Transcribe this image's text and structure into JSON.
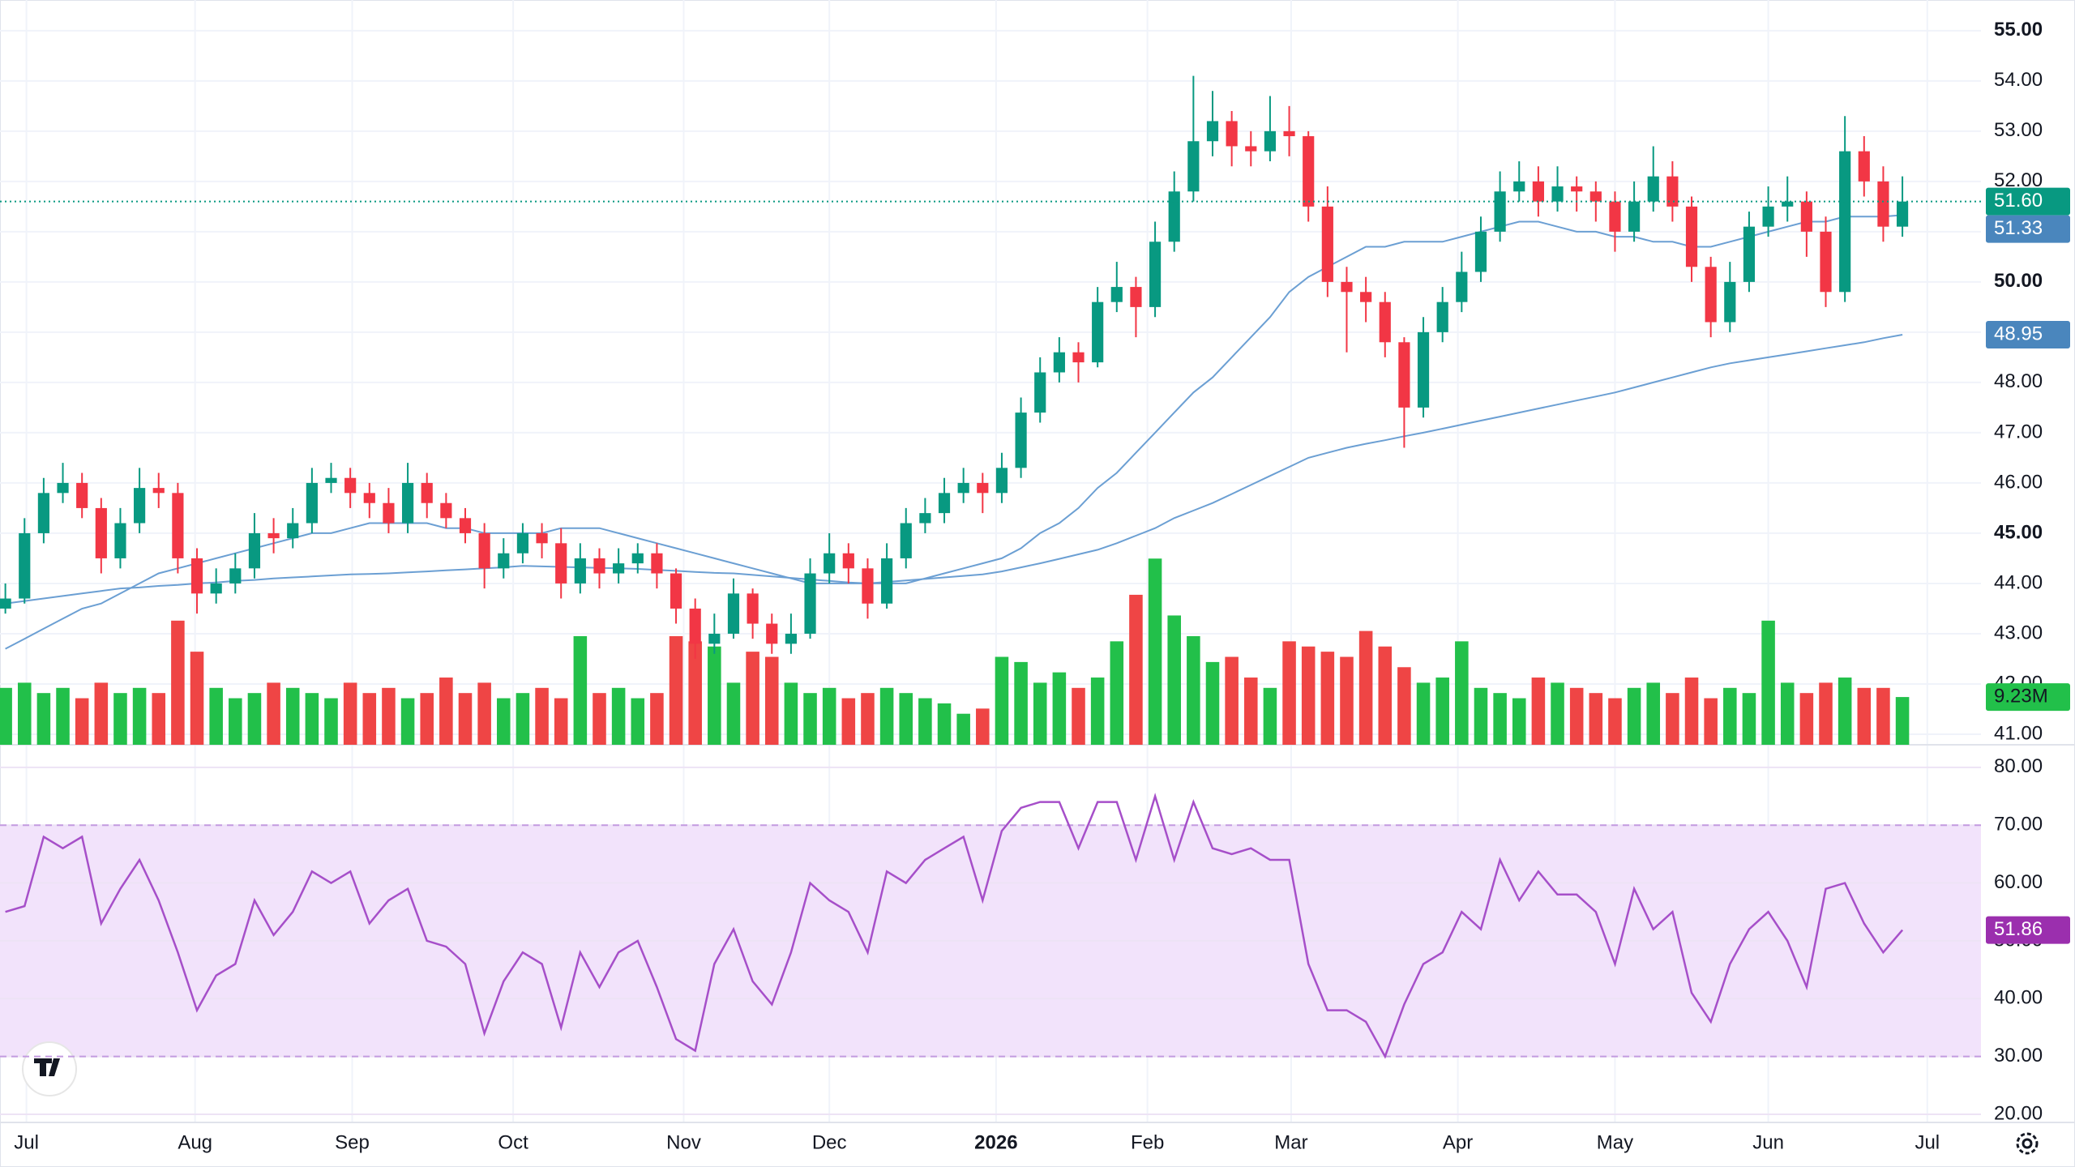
{
  "chart_data": [
    {
      "type": "candlestick",
      "up_color": "#089981",
      "down_color": "#f23645",
      "open": [
        43.5,
        43.7,
        45.0,
        45.8,
        46.0,
        45.5,
        44.5,
        45.2,
        45.9,
        45.8,
        44.5,
        43.8,
        44.0,
        44.3,
        45.0,
        44.9,
        45.2,
        46.0,
        46.1,
        45.8,
        45.6,
        45.2,
        46.0,
        45.6,
        45.3,
        45.0,
        44.3,
        44.6,
        45.0,
        44.8,
        44.0,
        44.5,
        44.2,
        44.4,
        44.6,
        44.2,
        43.5,
        42.8,
        43.0,
        43.8,
        43.2,
        42.8,
        43.0,
        44.2,
        44.6,
        44.3,
        43.6,
        44.5,
        45.2,
        45.4,
        45.8,
        46.0,
        45.8,
        46.3,
        47.4,
        48.2,
        48.6,
        48.4,
        49.6,
        49.9,
        49.5,
        50.8,
        51.8,
        52.8,
        53.2,
        52.7,
        52.6,
        53.0,
        52.9,
        51.5,
        50.0,
        49.8,
        49.6,
        48.8,
        47.5,
        49.0,
        49.6,
        50.2,
        51.0,
        51.8,
        52.0,
        51.6,
        51.9,
        51.8,
        51.6,
        51.0,
        51.6,
        52.1,
        51.5,
        50.3,
        49.2,
        50.0,
        51.1,
        51.5,
        51.6,
        51.0,
        49.8,
        52.6,
        52.0,
        51.1
      ],
      "high": [
        44.0,
        45.3,
        46.1,
        46.4,
        46.2,
        45.7,
        45.5,
        46.3,
        46.2,
        46.0,
        44.7,
        44.3,
        44.6,
        45.4,
        45.3,
        45.5,
        46.3,
        46.4,
        46.3,
        46.0,
        45.9,
        46.4,
        46.2,
        45.8,
        45.5,
        45.2,
        44.9,
        45.2,
        45.2,
        45.1,
        44.8,
        44.7,
        44.7,
        44.8,
        44.8,
        44.3,
        43.7,
        43.4,
        44.1,
        43.9,
        43.4,
        43.4,
        44.5,
        45.0,
        44.8,
        44.5,
        44.8,
        45.5,
        45.7,
        46.1,
        46.3,
        46.2,
        46.6,
        47.7,
        48.5,
        48.9,
        48.8,
        49.9,
        50.4,
        50.1,
        51.2,
        52.2,
        54.1,
        53.8,
        53.4,
        53.0,
        53.7,
        53.5,
        53.0,
        51.9,
        50.3,
        50.1,
        49.8,
        48.9,
        49.3,
        49.9,
        50.6,
        51.3,
        52.2,
        52.4,
        52.3,
        52.3,
        52.1,
        52.0,
        51.8,
        52.0,
        52.7,
        52.4,
        51.7,
        50.5,
        50.4,
        51.4,
        51.9,
        52.1,
        51.8,
        51.3,
        53.3,
        52.9,
        52.3,
        52.1
      ],
      "low": [
        43.4,
        43.6,
        44.8,
        45.6,
        45.3,
        44.2,
        44.3,
        45.0,
        45.5,
        44.2,
        43.4,
        43.6,
        43.8,
        44.1,
        44.6,
        44.7,
        45.0,
        45.8,
        45.5,
        45.3,
        45.0,
        45.0,
        45.3,
        45.1,
        44.8,
        43.9,
        44.1,
        44.4,
        44.5,
        43.7,
        43.8,
        43.9,
        44.0,
        44.2,
        43.9,
        43.2,
        42.5,
        42.6,
        42.9,
        42.9,
        42.6,
        42.6,
        42.9,
        44.0,
        44.0,
        43.3,
        43.5,
        44.3,
        45.0,
        45.2,
        45.6,
        45.4,
        45.6,
        46.1,
        47.2,
        48.0,
        48.0,
        48.3,
        49.4,
        48.9,
        49.3,
        50.6,
        51.6,
        52.5,
        52.3,
        52.3,
        52.4,
        52.5,
        51.2,
        49.7,
        48.6,
        49.2,
        48.5,
        46.7,
        47.3,
        48.8,
        49.4,
        50.0,
        50.8,
        51.6,
        51.3,
        51.4,
        51.4,
        51.2,
        50.6,
        50.8,
        51.4,
        51.2,
        50.0,
        48.9,
        49.0,
        49.8,
        50.9,
        51.2,
        50.5,
        49.5,
        49.6,
        51.7,
        50.8,
        50.9
      ],
      "close": [
        43.7,
        45.0,
        45.8,
        46.0,
        45.5,
        44.5,
        45.2,
        45.9,
        45.8,
        44.5,
        43.8,
        44.0,
        44.3,
        45.0,
        44.9,
        45.2,
        46.0,
        46.1,
        45.8,
        45.6,
        45.2,
        46.0,
        45.6,
        45.3,
        45.0,
        44.3,
        44.6,
        45.0,
        44.8,
        44.0,
        44.5,
        44.2,
        44.4,
        44.6,
        44.2,
        43.5,
        42.8,
        43.0,
        43.8,
        43.2,
        42.8,
        43.0,
        44.2,
        44.6,
        44.3,
        43.6,
        44.5,
        45.2,
        45.4,
        45.8,
        46.0,
        45.8,
        46.3,
        47.4,
        48.2,
        48.6,
        48.4,
        49.6,
        49.9,
        49.5,
        50.8,
        51.8,
        52.8,
        53.2,
        52.7,
        52.6,
        53.0,
        52.9,
        51.5,
        50.0,
        49.8,
        49.6,
        48.8,
        47.5,
        49.0,
        49.6,
        50.2,
        51.0,
        51.8,
        52.0,
        51.6,
        51.9,
        51.8,
        51.6,
        51.0,
        51.6,
        52.1,
        51.5,
        50.3,
        49.2,
        50.0,
        51.1,
        51.5,
        51.6,
        51.0,
        49.8,
        52.6,
        52.0,
        51.1,
        51.6
      ],
      "close_last_label": "51.60",
      "series": [
        {
          "color": "#6b9fd3",
          "label_color": "#4a86bd",
          "last_value_label": "51.33",
          "values": [
            42.7,
            42.9,
            43.1,
            43.3,
            43.5,
            43.6,
            43.8,
            44.0,
            44.2,
            44.3,
            44.4,
            44.5,
            44.6,
            44.7,
            44.8,
            44.9,
            45.0,
            45.0,
            45.1,
            45.2,
            45.2,
            45.2,
            45.2,
            45.1,
            45.1,
            45.0,
            45.0,
            45.0,
            45.0,
            45.1,
            45.1,
            45.1,
            45.0,
            44.9,
            44.8,
            44.7,
            44.6,
            44.5,
            44.4,
            44.3,
            44.2,
            44.1,
            44.0,
            44.0,
            44.0,
            44.0,
            44.0,
            44.0,
            44.1,
            44.2,
            44.3,
            44.4,
            44.5,
            44.7,
            45.0,
            45.2,
            45.5,
            45.9,
            46.2,
            46.6,
            47.0,
            47.4,
            47.8,
            48.1,
            48.5,
            48.9,
            49.3,
            49.8,
            50.1,
            50.3,
            50.5,
            50.7,
            50.7,
            50.8,
            50.8,
            50.8,
            50.9,
            51.0,
            51.1,
            51.2,
            51.2,
            51.1,
            51.0,
            51.0,
            50.9,
            50.9,
            50.8,
            50.8,
            50.7,
            50.7,
            50.8,
            50.9,
            51.0,
            51.1,
            51.2,
            51.2,
            51.3,
            51.3,
            51.3,
            51.33
          ]
        },
        {
          "color": "#6b9fd3",
          "label_color": "#4a86bd",
          "last_value_label": "48.95",
          "values": [
            43.6,
            43.65,
            43.7,
            43.75,
            43.8,
            43.85,
            43.9,
            43.92,
            43.95,
            43.97,
            44.0,
            44.02,
            44.05,
            44.07,
            44.1,
            44.12,
            44.14,
            44.16,
            44.18,
            44.19,
            44.2,
            44.22,
            44.24,
            44.26,
            44.28,
            44.3,
            44.32,
            44.35,
            44.34,
            44.33,
            44.32,
            44.31,
            44.3,
            44.29,
            44.27,
            44.25,
            44.23,
            44.21,
            44.2,
            44.17,
            44.14,
            44.11,
            44.08,
            44.05,
            44.02,
            44.0,
            44.03,
            44.06,
            44.09,
            44.12,
            44.15,
            44.18,
            44.24,
            44.32,
            44.4,
            44.49,
            44.58,
            44.67,
            44.8,
            44.95,
            45.1,
            45.3,
            45.45,
            45.6,
            45.78,
            45.96,
            46.14,
            46.32,
            46.5,
            46.6,
            46.7,
            46.78,
            46.85,
            46.93,
            47.0,
            47.08,
            47.16,
            47.24,
            47.32,
            47.4,
            47.48,
            47.56,
            47.64,
            47.72,
            47.8,
            47.9,
            48.0,
            48.1,
            48.2,
            48.3,
            48.38,
            48.44,
            48.5,
            48.56,
            48.62,
            48.68,
            48.74,
            48.8,
            48.88,
            48.95
          ]
        }
      ],
      "xlim": [
        -0.28,
        103.1
      ],
      "xticks": [
        {
          "value": 1.1,
          "label": "Jul"
        },
        {
          "value": 9.9,
          "label": "Aug"
        },
        {
          "value": 18.1,
          "label": "Sep"
        },
        {
          "value": 26.5,
          "label": "Oct"
        },
        {
          "value": 35.4,
          "label": "Nov"
        },
        {
          "value": 43.0,
          "label": "Dec"
        },
        {
          "value": 51.7,
          "label": "2026",
          "bold": true
        },
        {
          "value": 59.6,
          "label": "Feb"
        },
        {
          "value": 67.1,
          "label": "Mar"
        },
        {
          "value": 75.8,
          "label": "Apr"
        },
        {
          "value": 84.0,
          "label": "May"
        },
        {
          "value": 92.0,
          "label": "Jun"
        },
        {
          "value": 100.3,
          "label": "Jul"
        }
      ],
      "ylim": [
        40.79,
        55.61
      ],
      "yticks": [
        {
          "value": 41,
          "label": "41.00"
        },
        {
          "value": 42,
          "label": "42.00"
        },
        {
          "value": 43,
          "label": "43.00"
        },
        {
          "value": 44,
          "label": "44.00"
        },
        {
          "value": 45,
          "label": "45.00",
          "bold": true
        },
        {
          "value": 46,
          "label": "46.00"
        },
        {
          "value": 47,
          "label": "47.00"
        },
        {
          "value": 48,
          "label": "48.00"
        },
        {
          "value": 49,
          "label": "49.00"
        },
        {
          "value": 50,
          "label": "50.00",
          "bold": true
        },
        {
          "value": 51,
          "label": "51.00"
        },
        {
          "value": 52,
          "label": "52.00"
        },
        {
          "value": 53,
          "label": "53.00"
        },
        {
          "value": 54,
          "label": "54.00"
        },
        {
          "value": 55,
          "label": "55.00",
          "bold": true
        }
      ],
      "grid": true
    },
    {
      "type": "bar",
      "up_color": "#22c04a",
      "down_color": "#ef4545",
      "ylim": [
        0,
        144
      ],
      "values": [
        11,
        12,
        10,
        11,
        9,
        12,
        10,
        11,
        10,
        24,
        18,
        11,
        9,
        10,
        12,
        11,
        10,
        9,
        12,
        10,
        11,
        9,
        10,
        13,
        10,
        12,
        9,
        10,
        11,
        9,
        21,
        10,
        11,
        9,
        10,
        21,
        20,
        19,
        12,
        18,
        17,
        12,
        10,
        11,
        9,
        10,
        11,
        10,
        9,
        8,
        6,
        7,
        17,
        16,
        12,
        14,
        11,
        13,
        20,
        29,
        36,
        25,
        21,
        16,
        17,
        13,
        11,
        20,
        19,
        18,
        17,
        22,
        19,
        15,
        12,
        13,
        20,
        11,
        10,
        9,
        13,
        12,
        11,
        10,
        9,
        11,
        12,
        10,
        13,
        9,
        11,
        10,
        24,
        12,
        10,
        12,
        13,
        11,
        11,
        9.23
      ],
      "last_value_label": "9.23M"
    },
    {
      "type": "line",
      "color": "#a64fc9",
      "label_color": "#9b2fae",
      "band": [
        30,
        70
      ],
      "band_color": "#f2e3fb",
      "band_line_color": "#c39be0",
      "values": [
        55,
        56,
        68,
        66,
        68,
        53,
        59,
        64,
        57,
        48,
        38,
        44,
        46,
        57,
        51,
        55,
        62,
        60,
        62,
        53,
        57,
        59,
        50,
        49,
        46,
        34,
        43,
        48,
        46,
        35,
        48,
        42,
        48,
        50,
        42,
        33,
        31,
        46,
        52,
        43,
        39,
        48,
        60,
        57,
        55,
        48,
        62,
        60,
        64,
        66,
        68,
        57,
        69,
        73,
        74,
        74,
        66,
        74,
        74,
        64,
        75,
        64,
        74,
        66,
        65,
        66,
        64,
        64,
        46,
        38,
        38,
        36,
        30,
        39,
        46,
        48,
        55,
        52,
        64,
        57,
        62,
        58,
        58,
        55,
        46,
        59,
        52,
        55,
        41,
        36,
        46,
        52,
        55,
        50,
        42,
        59,
        60,
        53,
        48,
        51.86
      ],
      "last_value_label": "51.86",
      "ylim": [
        18.6,
        83.9
      ],
      "yticks": [
        {
          "value": 20,
          "label": "20.00"
        },
        {
          "value": 30,
          "label": "30.00"
        },
        {
          "value": 40,
          "label": "40.00"
        },
        {
          "value": 50,
          "label": "50.00"
        },
        {
          "value": 60,
          "label": "60.00"
        },
        {
          "value": 70,
          "label": "70.00"
        },
        {
          "value": 80,
          "label": "80.00"
        }
      ],
      "grid": true
    }
  ]
}
